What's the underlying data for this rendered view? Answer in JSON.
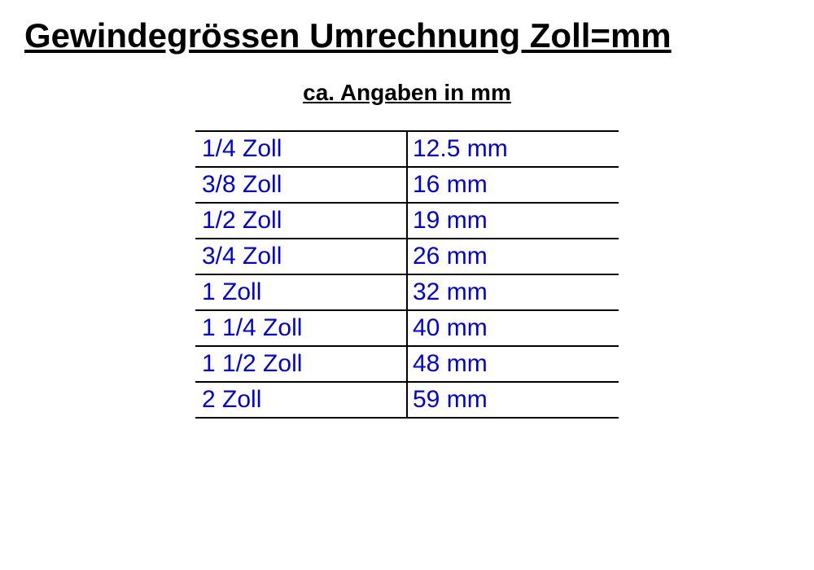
{
  "title": "Gewindegrössen Umrechnung Zoll=mm",
  "subtitle": "ca. Angaben in mm",
  "table": {
    "type": "table",
    "columns": [
      "zoll",
      "mm"
    ],
    "column_widths": [
      "50%",
      "50%"
    ],
    "text_color": "#0000dd",
    "border_color": "#000000",
    "border_width": 2,
    "fontsize": 30,
    "rows": [
      {
        "zoll": "1/4 Zoll",
        "mm": "12.5 mm"
      },
      {
        "zoll": "3/8 Zoll",
        "mm": "16 mm"
      },
      {
        "zoll": "1/2 Zoll",
        "mm": "19 mm"
      },
      {
        "zoll": "3/4 Zoll",
        "mm": "26 mm"
      },
      {
        "zoll": "1 Zoll",
        "mm": "32 mm"
      },
      {
        "zoll": "1 1/4 Zoll",
        "mm": "40 mm"
      },
      {
        "zoll": "1 1/2 Zoll",
        "mm": "48 mm"
      },
      {
        "zoll": "2 Zoll",
        "mm": "59 mm"
      }
    ]
  },
  "styling": {
    "background_color": "#ffffff",
    "title_color": "#000000",
    "title_fontsize": 42,
    "title_weight": "bold",
    "title_underline": true,
    "subtitle_color": "#000000",
    "subtitle_fontsize": 28,
    "subtitle_weight": "bold",
    "subtitle_underline": true,
    "font_family": "Arial"
  }
}
